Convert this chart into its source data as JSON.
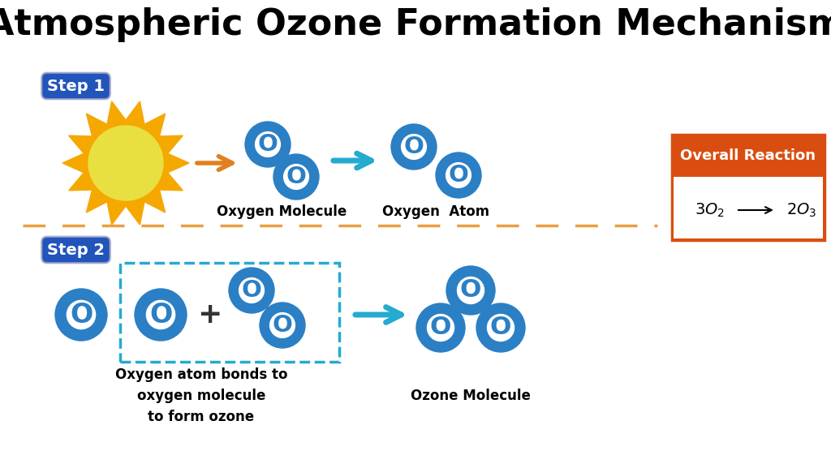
{
  "title": "Atmospheric Ozone Formation Mechanism",
  "title_fontsize": 32,
  "title_fontweight": "bold",
  "bg_color": "#ffffff",
  "step1_label": "Step 1",
  "step2_label": "Step 2",
  "step_bg_color": "#2255bb",
  "step_text_color": "#ffffff",
  "atom_fill_color": "#2b7fc4",
  "atom_inner_color": "#ffffff",
  "bond_color": "#909090",
  "sun_outer_color": "#f5a800",
  "sun_inner_color": "#e8e040",
  "orange_arrow_color": "#e08020",
  "blue_arrow_color": "#25aad0",
  "dashed_line_color": "#e8a040",
  "overall_reaction_bg": "#d94e10",
  "overall_reaction_text_color": "#ffffff",
  "overall_reaction_label": "Overall Reaction",
  "reaction_formula_color": "#111111"
}
